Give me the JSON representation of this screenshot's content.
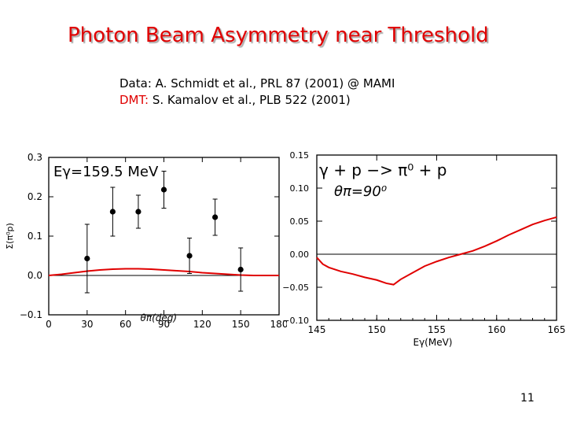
{
  "slide": {
    "title": "Photon Beam Asymmetry near Threshold",
    "data_ref_label": "Data:",
    "data_ref_text": "A. Schmidt et al., PRL 87 (2001) @ MAMI",
    "dmt_ref_label": "DMT:",
    "dmt_ref_text": "S. Kamalov et al., PLB 522 (2001)",
    "page_number": "11"
  },
  "colors": {
    "title": "#e00000",
    "curve": "#e00000",
    "points": "#000000"
  },
  "chart_data": [
    {
      "type": "scatter",
      "annotation": "Eγ=159.5 MeV",
      "xlabel": "θπ(deg)",
      "ylabel": "Σ(π⁰p)",
      "xlim": [
        0,
        180
      ],
      "ylim": [
        -0.1,
        0.3
      ],
      "xticks": [
        0,
        30,
        60,
        90,
        120,
        150,
        180
      ],
      "yticks": [
        -0.1,
        0.0,
        0.1,
        0.2,
        0.3
      ],
      "ytick_labels": [
        "−0.1",
        "0.0",
        "0.1",
        "0.2",
        "0.3"
      ],
      "points": [
        {
          "x": 30,
          "y": 0.043,
          "err": 0.087
        },
        {
          "x": 50,
          "y": 0.162,
          "err": 0.062
        },
        {
          "x": 70,
          "y": 0.162,
          "err": 0.042
        },
        {
          "x": 90,
          "y": 0.218,
          "err": 0.047
        },
        {
          "x": 110,
          "y": 0.05,
          "err": 0.045
        },
        {
          "x": 130,
          "y": 0.148,
          "err": 0.046
        },
        {
          "x": 150,
          "y": 0.015,
          "err": 0.055
        }
      ],
      "curve": {
        "x": [
          0,
          10,
          20,
          30,
          40,
          50,
          60,
          70,
          80,
          90,
          100,
          110,
          120,
          130,
          140,
          150,
          160,
          170,
          180
        ],
        "y": [
          0.0,
          0.003,
          0.007,
          0.011,
          0.014,
          0.016,
          0.017,
          0.017,
          0.016,
          0.014,
          0.012,
          0.01,
          0.007,
          0.005,
          0.003,
          0.001,
          0.0,
          0.0,
          0.0
        ]
      },
      "zero_line": true
    },
    {
      "type": "line",
      "annotation_reaction": "γ + p −> π⁰ + p",
      "annotation_angle": "θπ=90⁰",
      "xlabel": "Eγ(MeV)",
      "xlim": [
        145,
        165
      ],
      "ylim": [
        -0.1,
        0.15
      ],
      "xticks": [
        145,
        150,
        155,
        160,
        165
      ],
      "yticks": [
        -0.1,
        -0.05,
        0.0,
        0.05,
        0.1,
        0.15
      ],
      "ytick_labels": [
        "−0.10",
        "−0.05",
        "0.00",
        "0.05",
        "0.10",
        "0.15"
      ],
      "curve": {
        "x": [
          145,
          145.5,
          146,
          147,
          148,
          149,
          150,
          150.8,
          151.4,
          152,
          153,
          154,
          155,
          156,
          157,
          158,
          159,
          160,
          161,
          162,
          163,
          164,
          165
        ],
        "y": [
          -0.005,
          -0.015,
          -0.02,
          -0.026,
          -0.03,
          -0.035,
          -0.039,
          -0.044,
          -0.046,
          -0.038,
          -0.028,
          -0.018,
          -0.011,
          -0.005,
          0.0,
          0.005,
          0.012,
          0.02,
          0.029,
          0.037,
          0.045,
          0.051,
          0.056
        ]
      },
      "zero_line": true
    }
  ]
}
